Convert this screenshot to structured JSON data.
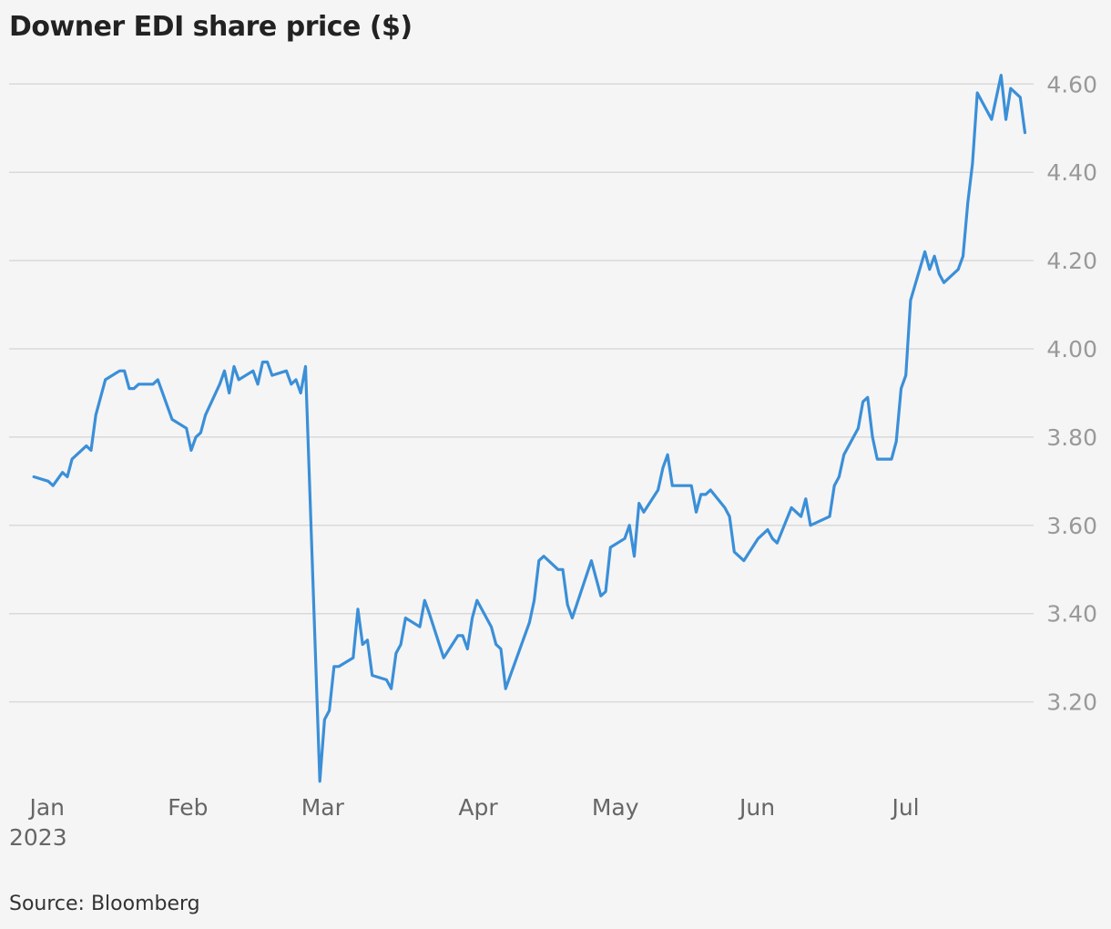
{
  "chart_data": {
    "type": "line",
    "title": "Downer EDI share price ($)",
    "source": "Source: Bloomberg",
    "xlabel": "",
    "ylabel": "",
    "ylim": [
      3.02,
      4.64
    ],
    "grid": true,
    "y_ticks": [
      "3.20",
      "3.40",
      "3.60",
      "3.80",
      "4.00",
      "4.20",
      "4.40",
      "4.60"
    ],
    "x_ticks": [
      {
        "label": "Jan",
        "sublabel": "2023",
        "date": "2023-01-03"
      },
      {
        "label": "Feb",
        "sublabel": "",
        "date": "2023-02-01"
      },
      {
        "label": "Mar",
        "sublabel": "",
        "date": "2023-03-01"
      },
      {
        "label": "Apr",
        "sublabel": "",
        "date": "2023-04-03"
      },
      {
        "label": "May",
        "sublabel": "",
        "date": "2023-05-01"
      },
      {
        "label": "Jun",
        "sublabel": "",
        "date": "2023-06-01"
      },
      {
        "label": "Jul",
        "sublabel": "",
        "date": "2023-07-03"
      }
    ],
    "line_color": "#3b8fd8",
    "series": [
      {
        "name": "",
        "points": [
          [
            "2023-01-02",
            3.71
          ],
          [
            "2023-01-05",
            3.7
          ],
          [
            "2023-01-06",
            3.69
          ],
          [
            "2023-01-08",
            3.72
          ],
          [
            "2023-01-09",
            3.71
          ],
          [
            "2023-01-10",
            3.75
          ],
          [
            "2023-01-13",
            3.78
          ],
          [
            "2023-01-14",
            3.77
          ],
          [
            "2023-01-15",
            3.85
          ],
          [
            "2023-01-17",
            3.93
          ],
          [
            "2023-01-20",
            3.95
          ],
          [
            "2023-01-21",
            3.95
          ],
          [
            "2023-01-22",
            3.91
          ],
          [
            "2023-01-23",
            3.91
          ],
          [
            "2023-01-24",
            3.92
          ],
          [
            "2023-01-27",
            3.92
          ],
          [
            "2023-01-28",
            3.93
          ],
          [
            "2023-01-31",
            3.84
          ],
          [
            "2023-02-03",
            3.82
          ],
          [
            "2023-02-04",
            3.77
          ],
          [
            "2023-02-05",
            3.8
          ],
          [
            "2023-02-06",
            3.81
          ],
          [
            "2023-02-07",
            3.85
          ],
          [
            "2023-02-10",
            3.92
          ],
          [
            "2023-02-11",
            3.95
          ],
          [
            "2023-02-12",
            3.9
          ],
          [
            "2023-02-13",
            3.96
          ],
          [
            "2023-02-14",
            3.93
          ],
          [
            "2023-02-17",
            3.95
          ],
          [
            "2023-02-18",
            3.92
          ],
          [
            "2023-02-19",
            3.97
          ],
          [
            "2023-02-20",
            3.97
          ],
          [
            "2023-02-21",
            3.94
          ],
          [
            "2023-02-24",
            3.95
          ],
          [
            "2023-02-25",
            3.92
          ],
          [
            "2023-02-26",
            3.93
          ],
          [
            "2023-02-27",
            3.9
          ],
          [
            "2023-02-28",
            3.96
          ],
          [
            "2023-03-03",
            3.02
          ],
          [
            "2023-03-04",
            3.16
          ],
          [
            "2023-03-05",
            3.18
          ],
          [
            "2023-03-06",
            3.28
          ],
          [
            "2023-03-07",
            3.28
          ],
          [
            "2023-03-10",
            3.3
          ],
          [
            "2023-03-11",
            3.41
          ],
          [
            "2023-03-12",
            3.33
          ],
          [
            "2023-03-13",
            3.34
          ],
          [
            "2023-03-14",
            3.26
          ],
          [
            "2023-03-17",
            3.25
          ],
          [
            "2023-03-18",
            3.23
          ],
          [
            "2023-03-19",
            3.31
          ],
          [
            "2023-03-20",
            3.33
          ],
          [
            "2023-03-21",
            3.39
          ],
          [
            "2023-03-24",
            3.37
          ],
          [
            "2023-03-25",
            3.43
          ],
          [
            "2023-03-26",
            3.4
          ],
          [
            "2023-03-29",
            3.3
          ],
          [
            "2023-04-01",
            3.35
          ],
          [
            "2023-04-02",
            3.35
          ],
          [
            "2023-04-03",
            3.32
          ],
          [
            "2023-04-04",
            3.39
          ],
          [
            "2023-04-05",
            3.43
          ],
          [
            "2023-04-08",
            3.37
          ],
          [
            "2023-04-09",
            3.33
          ],
          [
            "2023-04-10",
            3.32
          ],
          [
            "2023-04-11",
            3.23
          ],
          [
            "2023-04-16",
            3.38
          ],
          [
            "2023-04-17",
            3.43
          ],
          [
            "2023-04-18",
            3.52
          ],
          [
            "2023-04-19",
            3.53
          ],
          [
            "2023-04-22",
            3.5
          ],
          [
            "2023-04-23",
            3.5
          ],
          [
            "2023-04-24",
            3.42
          ],
          [
            "2023-04-25",
            3.39
          ],
          [
            "2023-04-29",
            3.52
          ],
          [
            "2023-04-30",
            3.48
          ],
          [
            "2023-05-01",
            3.44
          ],
          [
            "2023-05-02",
            3.45
          ],
          [
            "2023-05-03",
            3.55
          ],
          [
            "2023-05-06",
            3.57
          ],
          [
            "2023-05-07",
            3.6
          ],
          [
            "2023-05-08",
            3.53
          ],
          [
            "2023-05-09",
            3.65
          ],
          [
            "2023-05-10",
            3.63
          ],
          [
            "2023-05-13",
            3.68
          ],
          [
            "2023-05-14",
            3.73
          ],
          [
            "2023-05-15",
            3.76
          ],
          [
            "2023-05-16",
            3.69
          ],
          [
            "2023-05-20",
            3.69
          ],
          [
            "2023-05-21",
            3.63
          ],
          [
            "2023-05-22",
            3.67
          ],
          [
            "2023-05-23",
            3.67
          ],
          [
            "2023-05-24",
            3.68
          ],
          [
            "2023-05-27",
            3.64
          ],
          [
            "2023-05-28",
            3.62
          ],
          [
            "2023-05-29",
            3.54
          ],
          [
            "2023-05-31",
            3.52
          ],
          [
            "2023-06-03",
            3.57
          ],
          [
            "2023-06-05",
            3.59
          ],
          [
            "2023-06-06",
            3.57
          ],
          [
            "2023-06-07",
            3.56
          ],
          [
            "2023-06-10",
            3.64
          ],
          [
            "2023-06-11",
            3.63
          ],
          [
            "2023-06-12",
            3.62
          ],
          [
            "2023-06-13",
            3.66
          ],
          [
            "2023-06-14",
            3.6
          ],
          [
            "2023-06-18",
            3.62
          ],
          [
            "2023-06-19",
            3.69
          ],
          [
            "2023-06-20",
            3.71
          ],
          [
            "2023-06-21",
            3.76
          ],
          [
            "2023-06-24",
            3.82
          ],
          [
            "2023-06-25",
            3.88
          ],
          [
            "2023-06-26",
            3.89
          ],
          [
            "2023-06-27",
            3.8
          ],
          [
            "2023-06-28",
            3.75
          ],
          [
            "2023-07-01",
            3.75
          ],
          [
            "2023-07-02",
            3.79
          ],
          [
            "2023-07-03",
            3.91
          ],
          [
            "2023-07-04",
            3.94
          ],
          [
            "2023-07-05",
            4.11
          ],
          [
            "2023-07-08",
            4.22
          ],
          [
            "2023-07-09",
            4.18
          ],
          [
            "2023-07-10",
            4.21
          ],
          [
            "2023-07-11",
            4.17
          ],
          [
            "2023-07-12",
            4.15
          ],
          [
            "2023-07-15",
            4.18
          ],
          [
            "2023-07-16",
            4.21
          ],
          [
            "2023-07-17",
            4.33
          ],
          [
            "2023-07-18",
            4.42
          ],
          [
            "2023-07-19",
            4.58
          ],
          [
            "2023-07-22",
            4.52
          ],
          [
            "2023-07-24",
            4.62
          ],
          [
            "2023-07-25",
            4.52
          ],
          [
            "2023-07-26",
            4.59
          ],
          [
            "2023-07-28",
            4.57
          ],
          [
            "2023-07-29",
            4.49
          ]
        ]
      }
    ]
  }
}
